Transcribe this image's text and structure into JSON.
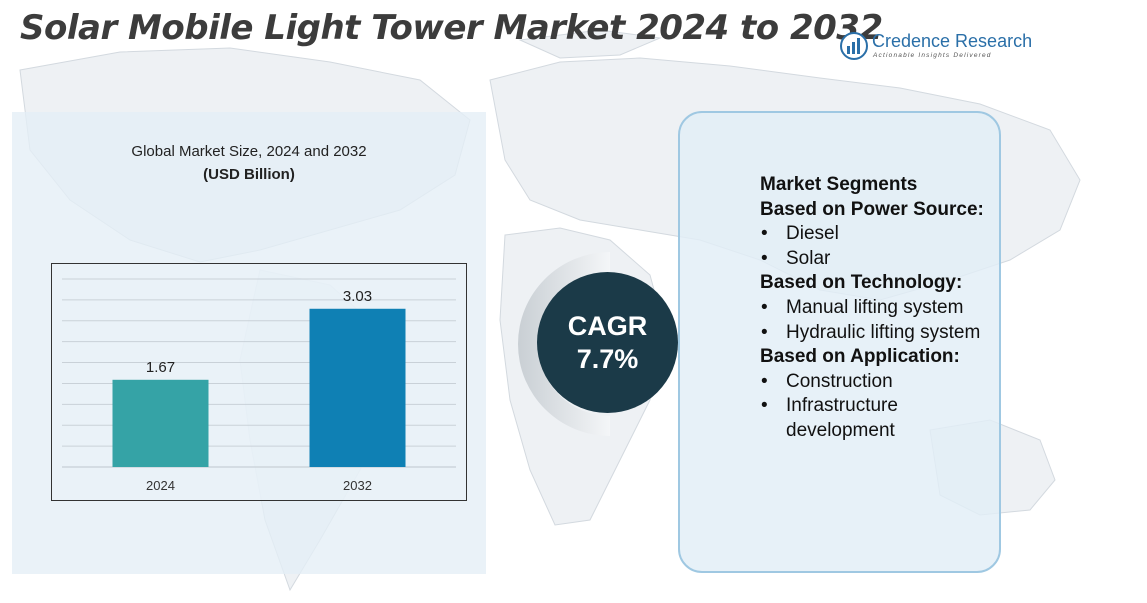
{
  "title": "Solar Mobile Light Tower Market 2024 to 2032",
  "brand": {
    "name": "Credence Research",
    "tagline": "Actionable Insights Delivered",
    "color": "#2a6fa8"
  },
  "chart_panel": {
    "caption_line1": "Global Market Size, 2024 and 2032",
    "caption_line2": "(USD Billion)"
  },
  "chart_data": {
    "type": "bar",
    "title": "Global Market Size, 2024 and 2032",
    "subtitle": "(USD Billion)",
    "categories": [
      "2024",
      "2032"
    ],
    "values": [
      1.67,
      3.03
    ],
    "colors": [
      "#35a3a6",
      "#0f80b4"
    ],
    "ylim": [
      0,
      3.6
    ],
    "grid": true,
    "xlabel": "",
    "ylabel": ""
  },
  "cagr": {
    "label": "CAGR",
    "value": "7.7%",
    "circle_color": "#1b3a48"
  },
  "segments": {
    "heading": "Market Segments",
    "groups": [
      {
        "title": "Based on Power Source:",
        "items": [
          "Diesel",
          "Solar"
        ]
      },
      {
        "title": "Based on Technology:",
        "items": [
          "Manual lifting system",
          "Hydraulic lifting system"
        ]
      },
      {
        "title": "Based on Application:",
        "items": [
          "Construction",
          "Infrastructure development"
        ]
      }
    ]
  }
}
